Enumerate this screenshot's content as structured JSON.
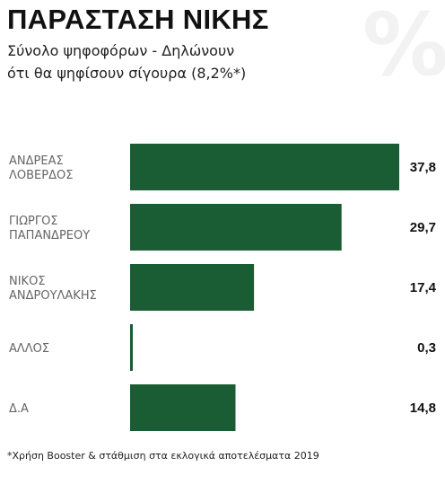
{
  "header": {
    "title": "ΠΑΡΑΣΤΑΣΗ ΝΙΚΗΣ",
    "subtitle_line1": "Σύνολο ψηφοφόρων - Δηλώνουν",
    "subtitle_line2": "ότι θα ψηφίσουν σίγουρα (8,2%*)"
  },
  "watermark": "%",
  "footnote": "*Χρήση Booster & στάθμιση στα εκλογικά αποτελέσματα 2019",
  "colors": {
    "bar": "#1a5c33",
    "background": "#ffffff"
  },
  "chart_data": {
    "type": "bar",
    "orientation": "horizontal",
    "categories": [
      [
        "ΑΝΔΡΕΑΣ",
        "ΛΟΒΕΡΔΟΣ"
      ],
      [
        "ΓΙΩΡΓΟΣ",
        "ΠΑΠΑΝΔΡΕΟΥ"
      ],
      [
        "ΝΙΚΟΣ",
        "ΑΝΔΡΟΥΛΑΚΗΣ"
      ],
      [
        "ΑΛΛΟΣ"
      ],
      [
        "Δ.Α"
      ]
    ],
    "values": [
      37.8,
      29.7,
      17.4,
      0.3,
      14.8
    ],
    "value_labels": [
      "37,8",
      "29,7",
      "17,4",
      "0,3",
      "14,8"
    ],
    "title": "ΠΑΡΑΣΤΑΣΗ ΝΙΚΗΣ",
    "xlim": [
      0,
      37.8
    ],
    "grid": false,
    "legend": "none"
  }
}
